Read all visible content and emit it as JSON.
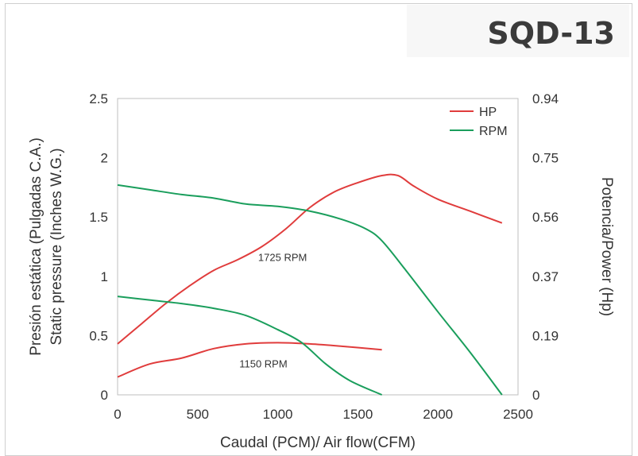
{
  "chart_data": {
    "type": "line",
    "title": "SQD-13",
    "xlabel": "Caudal (PCM)/ Air flow(CFM)",
    "ylabel_lines": [
      "Presión estática (Pulgadas C.A.)",
      "Static pressure (Inches W.G.)"
    ],
    "y2label": "Potencia/Power (Hp)",
    "xlim": [
      0,
      2500
    ],
    "ylim": [
      0,
      2.5
    ],
    "xticks": [
      0,
      500,
      1000,
      1500,
      2000,
      2500
    ],
    "yticks": [
      0,
      0.5,
      1,
      1.5,
      2,
      2.5
    ],
    "yticks_labels": [
      "0",
      "0.5",
      "1",
      "1.5",
      "2",
      "2.5"
    ],
    "y2ticks_labels": [
      "0",
      "0.19",
      "0.37",
      "0.56",
      "0.75",
      "0.94"
    ],
    "legend": {
      "position": "top-right",
      "entries": [
        {
          "name": "HP",
          "color": "#e03c3c"
        },
        {
          "name": "RPM",
          "color": "#1a9e5c"
        }
      ]
    },
    "annotations": [
      {
        "text": "1725 RPM",
        "x": 1030,
        "y": 1.13
      },
      {
        "text": "1150 RPM",
        "x": 910,
        "y": 0.23
      }
    ],
    "series": [
      {
        "name": "HP",
        "color": "#e03c3c",
        "x": [
          0,
          150,
          300,
          450,
          600,
          750,
          900,
          1050,
          1200,
          1350,
          1500,
          1650,
          1750,
          1850,
          2000,
          2200,
          2400
        ],
        "y": [
          0.43,
          0.6,
          0.77,
          0.92,
          1.05,
          1.14,
          1.25,
          1.4,
          1.58,
          1.71,
          1.79,
          1.85,
          1.85,
          1.76,
          1.65,
          1.55,
          1.45
        ]
      },
      {
        "color": "#e03c3c",
        "x": [
          0,
          200,
          400,
          600,
          800,
          1000,
          1200,
          1400,
          1650
        ],
        "y": [
          0.15,
          0.26,
          0.31,
          0.39,
          0.43,
          0.44,
          0.43,
          0.41,
          0.38
        ]
      },
      {
        "name": "RPM",
        "color": "#1a9e5c",
        "x": [
          0,
          200,
          400,
          600,
          800,
          1000,
          1200,
          1400,
          1550,
          1650,
          1800,
          2000,
          2200,
          2400
        ],
        "y": [
          1.77,
          1.73,
          1.69,
          1.66,
          1.61,
          1.59,
          1.55,
          1.48,
          1.4,
          1.3,
          1.05,
          0.7,
          0.36,
          0.0
        ]
      },
      {
        "color": "#1a9e5c",
        "x": [
          0,
          200,
          400,
          600,
          800,
          1000,
          1150,
          1300,
          1450,
          1650
        ],
        "y": [
          0.83,
          0.8,
          0.77,
          0.73,
          0.67,
          0.55,
          0.44,
          0.26,
          0.12,
          0.0
        ]
      }
    ]
  }
}
